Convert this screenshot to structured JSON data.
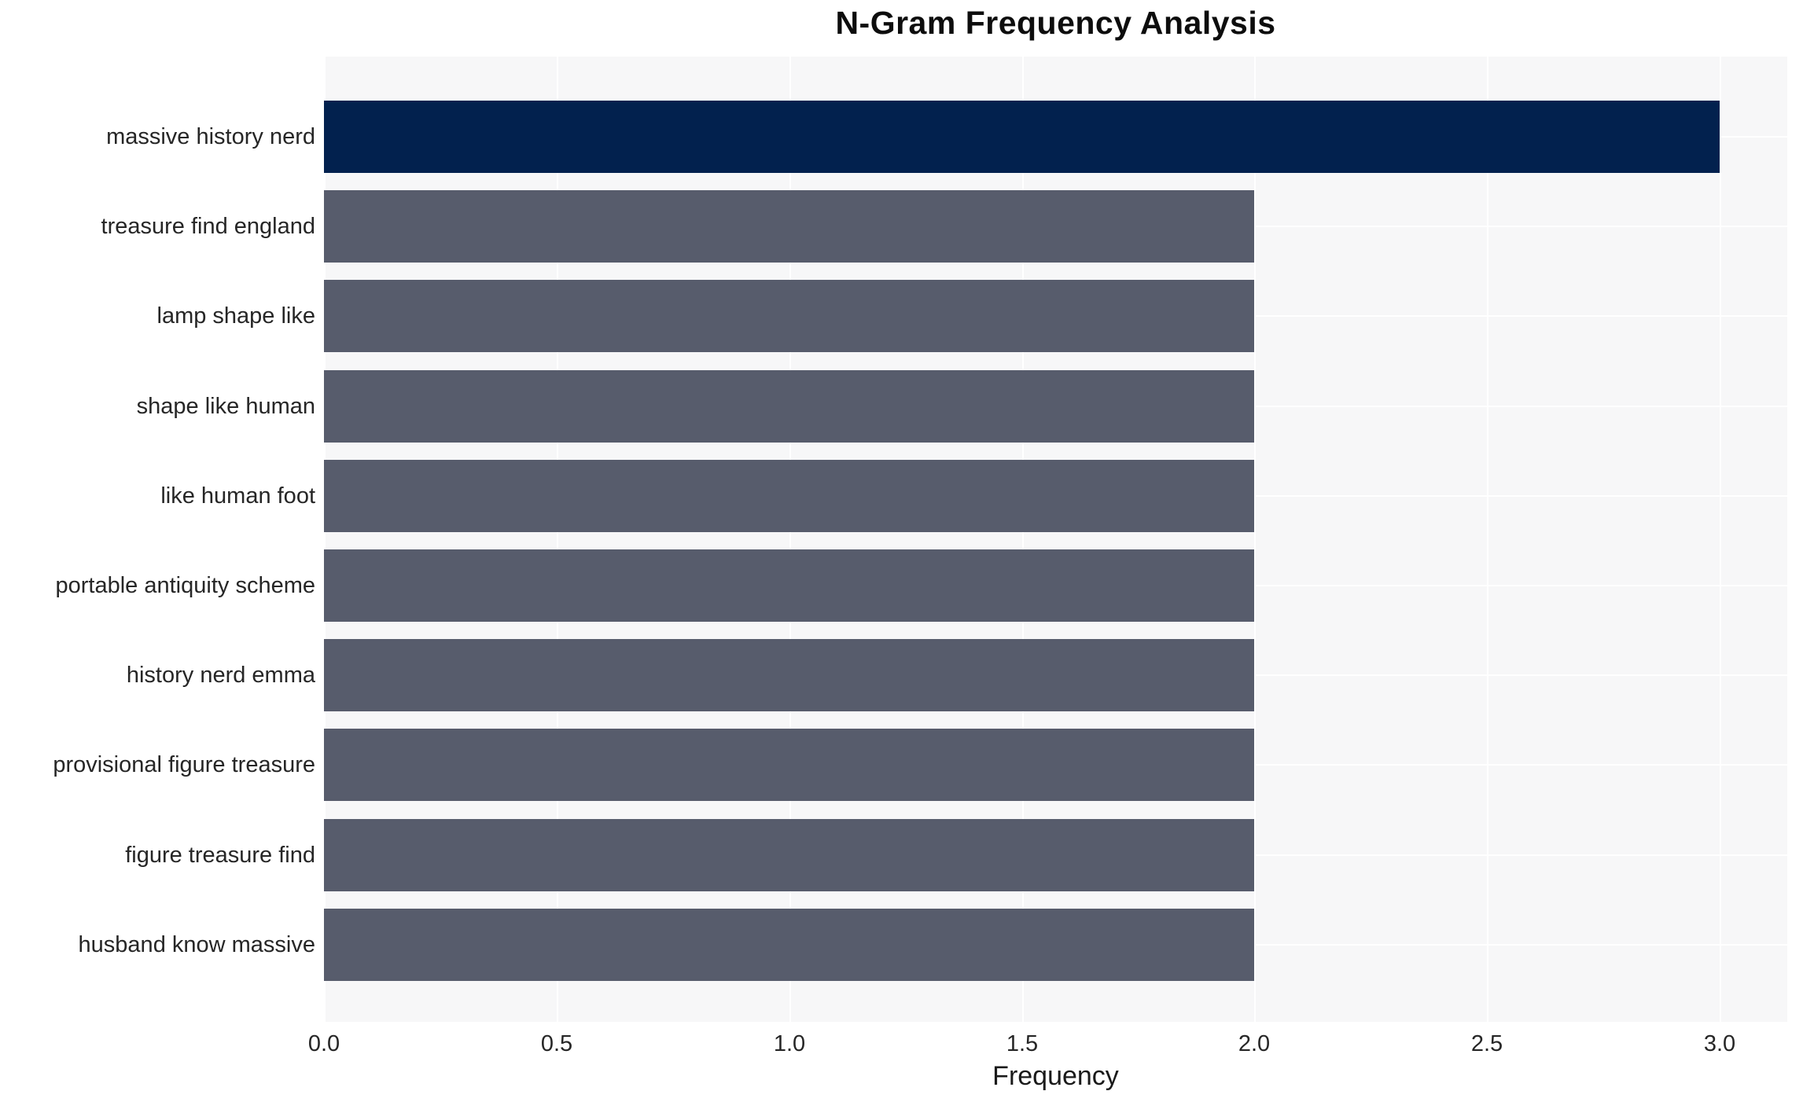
{
  "chart_data": {
    "type": "bar",
    "orientation": "horizontal",
    "title": "N-Gram Frequency Analysis",
    "xlabel": "Frequency",
    "ylabel": "",
    "categories": [
      "massive history nerd",
      "treasure find england",
      "lamp shape like",
      "shape like human",
      "like human foot",
      "portable antiquity scheme",
      "history nerd emma",
      "provisional figure treasure",
      "figure treasure find",
      "husband know massive"
    ],
    "values": [
      3,
      2,
      2,
      2,
      2,
      2,
      2,
      2,
      2,
      2
    ],
    "xticks": [
      "0.0",
      "0.5",
      "1.0",
      "1.5",
      "2.0",
      "2.5",
      "3.0"
    ],
    "xtick_values": [
      0.0,
      0.5,
      1.0,
      1.5,
      2.0,
      2.5,
      3.0
    ],
    "xlim": [
      0,
      3.145
    ],
    "grid": true,
    "legend": null,
    "colors": {
      "highlight_bar": "#02214e",
      "bar": "#575c6c",
      "plot_background": "#f7f7f8",
      "gridline": "#ffffff",
      "text": "#262626",
      "title_text": "#0d0d0d",
      "page_background": "#ffffff"
    }
  }
}
